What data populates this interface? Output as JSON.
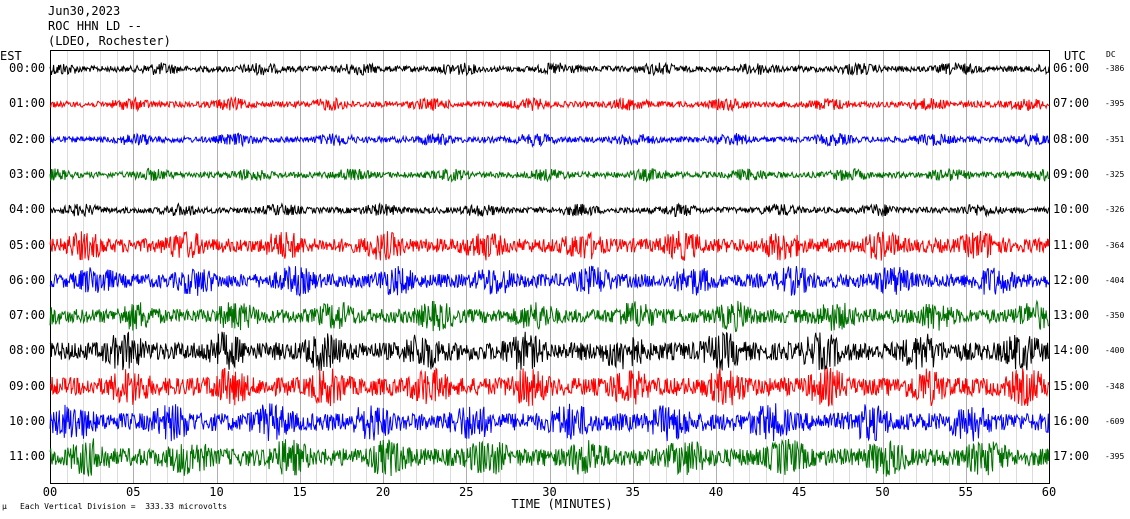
{
  "header": {
    "date": "Jun30,2023",
    "station": "ROC HHN LD --",
    "network": "(LDEO, Rochester)"
  },
  "axis": {
    "left_label": "EST",
    "right_label": "UTC",
    "dc_label": "DC",
    "xlabel": "TIME (MINUTES)",
    "footer_note": "Each Vertical Division =  333.33 microvolts"
  },
  "colors": {
    "cycle": [
      "#000000",
      "#ff0000",
      "#0000ff",
      "#007000"
    ]
  },
  "chart_data": {
    "type": "line",
    "title": "",
    "xlabel": "TIME (MINUTES)",
    "xlim": [
      0,
      60
    ],
    "x_ticks": [
      "00",
      "05",
      "10",
      "15",
      "20",
      "25",
      "30",
      "35",
      "40",
      "45",
      "50",
      "55",
      "60"
    ],
    "grid": "vertical-minor",
    "rows": [
      {
        "est": "00:00",
        "utc": "06:00",
        "dc": "-386"
      },
      {
        "est": "01:00",
        "utc": "07:00",
        "dc": "-395"
      },
      {
        "est": "02:00",
        "utc": "08:00",
        "dc": "-351"
      },
      {
        "est": "03:00",
        "utc": "09:00",
        "dc": "-325"
      },
      {
        "est": "04:00",
        "utc": "10:00",
        "dc": "-326"
      },
      {
        "est": "05:00",
        "utc": "11:00",
        "dc": "-364"
      },
      {
        "est": "06:00",
        "utc": "12:00",
        "dc": "-404"
      },
      {
        "est": "07:00",
        "utc": "13:00",
        "dc": "-350"
      },
      {
        "est": "08:00",
        "utc": "14:00",
        "dc": "-400"
      },
      {
        "est": "09:00",
        "utc": "15:00",
        "dc": "-348"
      },
      {
        "est": "10:00",
        "utc": "16:00",
        "dc": "-609"
      },
      {
        "est": "11:00",
        "utc": "17:00",
        "dc": "-395"
      }
    ]
  }
}
